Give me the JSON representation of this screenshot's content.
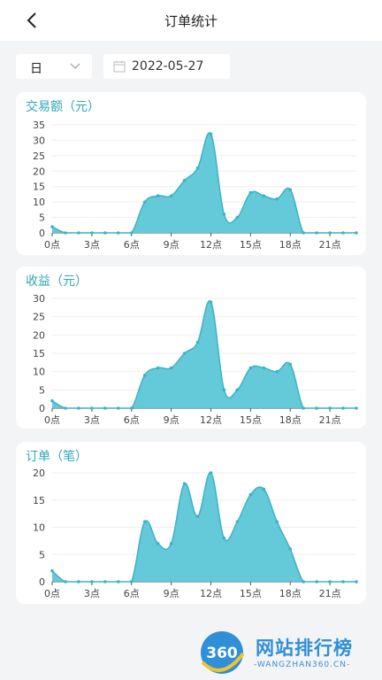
{
  "header": {
    "title": "订单统计"
  },
  "filters": {
    "period": "日",
    "date": "2022-05-27"
  },
  "charts": [
    {
      "title": "交易额（元）"
    },
    {
      "title": "收益（元）"
    },
    {
      "title": "订单（笔）"
    }
  ],
  "chart_data": [
    {
      "type": "area",
      "title": "交易额（元）",
      "x": [
        0,
        1,
        2,
        3,
        4,
        5,
        6,
        7,
        8,
        9,
        10,
        11,
        12,
        13,
        14,
        15,
        16,
        17,
        18,
        19,
        20,
        21,
        22,
        23
      ],
      "xticks": [
        "0点",
        "3点",
        "6点",
        "9点",
        "12点",
        "15点",
        "18点",
        "21点"
      ],
      "ylim": [
        0,
        35
      ],
      "yticks": [
        "0",
        "5",
        "10",
        "15",
        "20",
        "25",
        "30",
        "35"
      ],
      "values": [
        2,
        0,
        0,
        0,
        0,
        0,
        0,
        10,
        12,
        12,
        17,
        21,
        32,
        6,
        5,
        13,
        12,
        11,
        14,
        0,
        0,
        0,
        0,
        0
      ],
      "color": "#5cc6d6"
    },
    {
      "type": "area",
      "title": "收益（元）",
      "x": [
        0,
        1,
        2,
        3,
        4,
        5,
        6,
        7,
        8,
        9,
        10,
        11,
        12,
        13,
        14,
        15,
        16,
        17,
        18,
        19,
        20,
        21,
        22,
        23
      ],
      "xticks": [
        "0点",
        "3点",
        "6点",
        "9点",
        "12点",
        "15点",
        "18点",
        "21点"
      ],
      "ylim": [
        0,
        30
      ],
      "yticks": [
        "0",
        "5",
        "10",
        "15",
        "20",
        "25",
        "30"
      ],
      "values": [
        2,
        0,
        0,
        0,
        0,
        0,
        0,
        9,
        11,
        11,
        15,
        18,
        29,
        5,
        5,
        11,
        11,
        10,
        12,
        0,
        0,
        0,
        0,
        0
      ],
      "color": "#5cc6d6"
    },
    {
      "type": "area",
      "title": "订单（笔）",
      "x": [
        0,
        1,
        2,
        3,
        4,
        5,
        6,
        7,
        8,
        9,
        10,
        11,
        12,
        13,
        14,
        15,
        16,
        17,
        18,
        19,
        20,
        21,
        22,
        23
      ],
      "xticks": [
        "0点",
        "3点",
        "6点",
        "9点",
        "12点",
        "15点",
        "18点",
        "21点"
      ],
      "ylim": [
        0,
        20
      ],
      "yticks": [
        "0",
        "5",
        "10",
        "15",
        "20"
      ],
      "values": [
        2,
        0,
        0,
        0,
        0,
        0,
        0,
        11,
        7,
        7,
        18,
        12,
        20,
        8,
        11,
        16,
        17,
        11,
        6,
        0,
        0,
        0,
        0,
        0
      ],
      "color": "#5cc6d6"
    }
  ],
  "watermark": {
    "logo_text": "360",
    "name": "网站排行榜",
    "url": "-WANGZHAN360.CN-"
  }
}
